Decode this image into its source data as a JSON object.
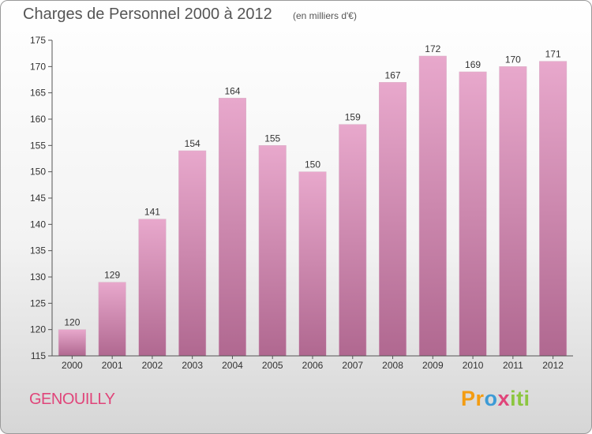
{
  "title": "Charges de Personnel 2000 à 2012",
  "subtitle": "(en milliers d'€)",
  "commune": "GENOUILLY",
  "logo": {
    "p1": "Pr",
    "p2": "o",
    "p3": "x",
    "p4": "iti"
  },
  "colors": {
    "bar_top": "#e8a8cc",
    "bar_bottom": "#b06890",
    "axis": "#555555",
    "commune": "#e0457a"
  },
  "chart_data": {
    "type": "bar",
    "categories": [
      "2000",
      "2001",
      "2002",
      "2003",
      "2004",
      "2005",
      "2006",
      "2007",
      "2008",
      "2009",
      "2010",
      "2011",
      "2012"
    ],
    "values": [
      120,
      129,
      141,
      154,
      164,
      155,
      150,
      159,
      167,
      172,
      169,
      170,
      171
    ],
    "ylim": [
      115,
      175
    ],
    "yticks": [
      115,
      120,
      125,
      130,
      135,
      140,
      145,
      150,
      155,
      160,
      165,
      170,
      175
    ],
    "xlabel": "",
    "ylabel": "",
    "grid": false,
    "data_labels": true
  }
}
